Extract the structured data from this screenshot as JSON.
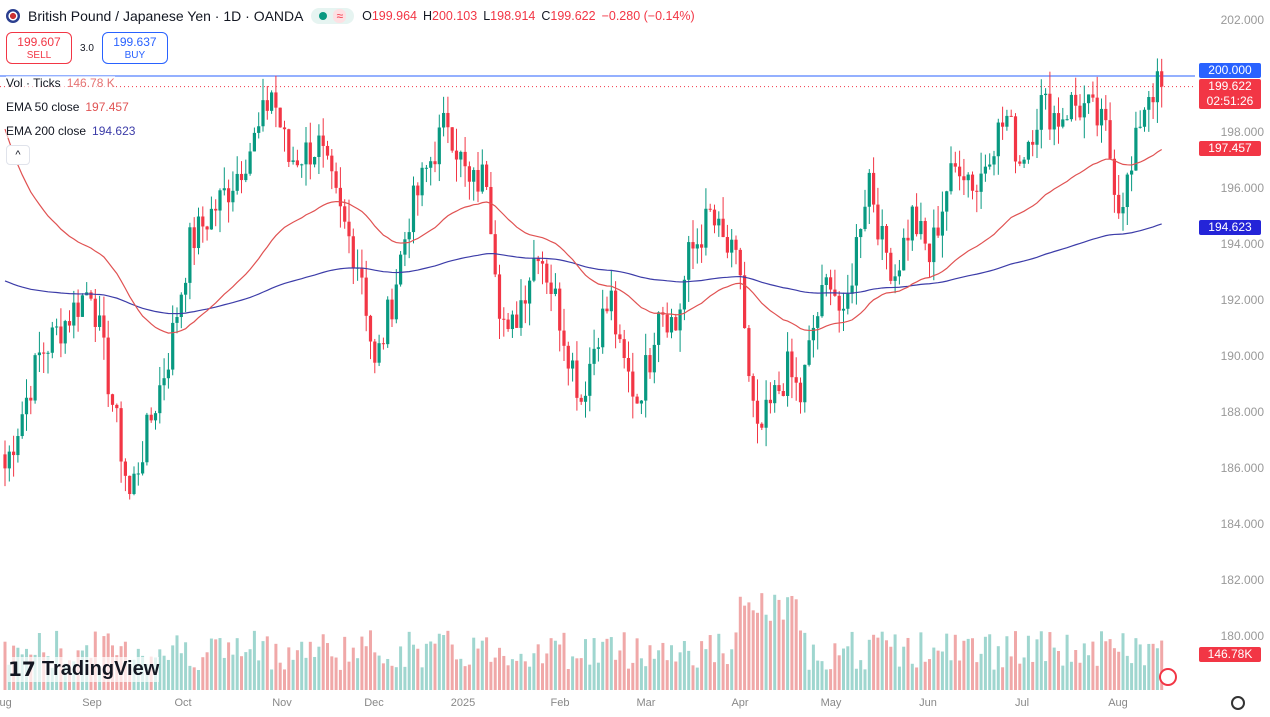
{
  "header": {
    "title": "British Pound / Japanese Yen · 1D · OANDA",
    "ohlc": {
      "o_label": "O",
      "o": "199.964",
      "h_label": "H",
      "h": "200.103",
      "l_label": "L",
      "l": "198.914",
      "c_label": "C",
      "c": "199.622",
      "change": "−0.280 (−0.14%)"
    },
    "market_status_icon": "market-open-dot",
    "wave_icon": "≈"
  },
  "trade": {
    "sell_price": "199.607",
    "sell_label": "SELL",
    "spread": "3.0",
    "buy_price": "199.637",
    "buy_label": "BUY"
  },
  "legend": {
    "vol_label": "Vol · Ticks",
    "vol_value": "146.78 K",
    "ema50_label": "EMA 50 close",
    "ema50_value": "197.457",
    "ema200_label": "EMA 200 close",
    "ema200_value": "194.623",
    "collapse": "^"
  },
  "price_axis": {
    "labels": [
      "202.000",
      "198.000",
      "196.000",
      "194.000",
      "192.000",
      "190.000",
      "188.000",
      "186.000",
      "184.000",
      "182.000",
      "180.000"
    ],
    "tag_alert": "200.000",
    "tag_last": "199.622",
    "tag_countdown": "02:51:26",
    "tag_ema50": "197.457",
    "tag_ema200": "194.623",
    "tag_volume": "146.78K"
  },
  "time_axis": [
    "Aug",
    "Sep",
    "Oct",
    "Nov",
    "Dec",
    "2025",
    "Feb",
    "Mar",
    "Apr",
    "May",
    "Jun",
    "Jul",
    "Aug"
  ],
  "brand": "TradingView",
  "colors": {
    "up": "#089981",
    "down": "#f23645",
    "ema50": "#e05252",
    "ema200": "#3c3ca8",
    "alert": "#2962ff"
  },
  "chart_data": {
    "type": "candlestick",
    "symbol": "GBPJPY",
    "ylim": [
      178.5,
      202.5
    ],
    "alert_level": 200.0,
    "last": 199.622,
    "anchors": [
      [
        0,
        186
      ],
      [
        8,
        190
      ],
      [
        20,
        192.5
      ],
      [
        29,
        185
      ],
      [
        38,
        190
      ],
      [
        43,
        194
      ],
      [
        52,
        196
      ],
      [
        59,
        198
      ],
      [
        62,
        199.5
      ],
      [
        66,
        197
      ],
      [
        73,
        197.5
      ],
      [
        78,
        195
      ],
      [
        83,
        193
      ],
      [
        86,
        189.5
      ],
      [
        90,
        192
      ],
      [
        94,
        195
      ],
      [
        99,
        197
      ],
      [
        103,
        198.5
      ],
      [
        108,
        196
      ],
      [
        112,
        196.5
      ],
      [
        115,
        192
      ],
      [
        117,
        190.5
      ],
      [
        122,
        193
      ],
      [
        124,
        194
      ],
      [
        128,
        192
      ],
      [
        134,
        188.5
      ],
      [
        138,
        191
      ],
      [
        141,
        192
      ],
      [
        143,
        190
      ],
      [
        147,
        188.5
      ],
      [
        150,
        190
      ],
      [
        152,
        192
      ],
      [
        156,
        191
      ],
      [
        159,
        193.5
      ],
      [
        164,
        195
      ],
      [
        167,
        194
      ],
      [
        171,
        193
      ],
      [
        173,
        189
      ],
      [
        175,
        187
      ],
      [
        179,
        188.5
      ],
      [
        182,
        189.5
      ],
      [
        185,
        188.5
      ],
      [
        188,
        191
      ],
      [
        192,
        193
      ],
      [
        195,
        191
      ],
      [
        199,
        195
      ],
      [
        201,
        196.5
      ],
      [
        204,
        194
      ],
      [
        207,
        193
      ],
      [
        211,
        195
      ],
      [
        215,
        193.5
      ],
      [
        219,
        196
      ],
      [
        222,
        197
      ],
      [
        226,
        196
      ],
      [
        229,
        197.5
      ],
      [
        233,
        198.5
      ],
      [
        236,
        197
      ],
      [
        241,
        199
      ],
      [
        245,
        198.5
      ],
      [
        248,
        199
      ],
      [
        252,
        198.8
      ],
      [
        256,
        198
      ],
      [
        259,
        195.5
      ],
      [
        262,
        196.5
      ],
      [
        264,
        198.5
      ],
      [
        266,
        199.5
      ],
      [
        269,
        199.622
      ]
    ],
    "ema50_init": 198.6,
    "ema200_init": 192.75
  }
}
